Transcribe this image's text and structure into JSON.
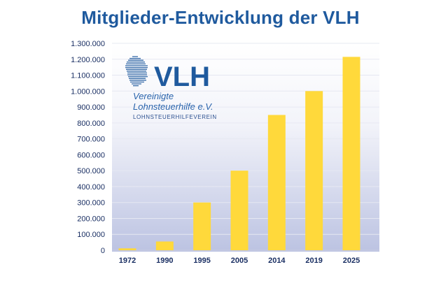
{
  "title": "Mitglieder-Entwicklung der VLH",
  "logo": {
    "mark": "VLH",
    "line1": "Vereinigte",
    "line2": "Lohnsteuerhilfe e.V.",
    "line3": "LOHNSTEUERHILFEVEREIN",
    "icon": "germany-map-dots-icon"
  },
  "colors": {
    "bar": "#ffd93b",
    "title": "#1f5a9e",
    "text": "#1a2f63",
    "grid": "#ffffff",
    "background_top": "#ffffff",
    "background_bottom": "#bcc3e2"
  },
  "chart_data": {
    "type": "bar",
    "title": "Mitglieder-Entwicklung der VLH",
    "categories": [
      "1972",
      "1990",
      "1995",
      "2005",
      "2014",
      "2019",
      "2025"
    ],
    "values": [
      12000,
      55000,
      300000,
      500000,
      850000,
      1000000,
      1215000
    ],
    "yticks": [
      "0",
      "100.000",
      "200.000",
      "300.000",
      "400.000",
      "500.000",
      "600.000",
      "700.000",
      "800.000",
      "900.000",
      "1.000.000",
      "1.100.000",
      "1.200.000",
      "1.300.000"
    ],
    "ylim": [
      0,
      1300000
    ],
    "xlabel": "",
    "ylabel": "",
    "grid": true,
    "legend": "none"
  }
}
